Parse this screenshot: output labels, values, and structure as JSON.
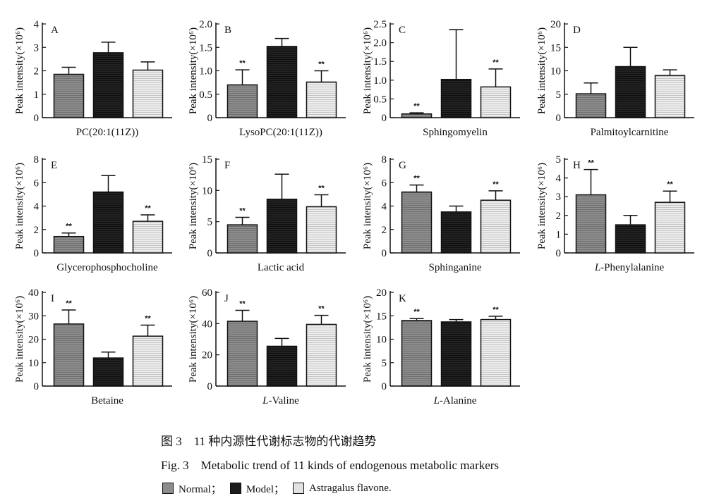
{
  "chart_data": [
    {
      "id": "A",
      "type": "bar",
      "panel_letter": "A",
      "xlabel": "PC(20:1(11Z))",
      "ylabel": "Peak intensity(×10⁶)",
      "ylim": [
        0,
        4
      ],
      "yticks": [
        0,
        1,
        2,
        3,
        4
      ],
      "series": [
        {
          "name": "Normal",
          "value": 1.85,
          "error": 0.3,
          "sig": ""
        },
        {
          "name": "Model",
          "value": 2.77,
          "error": 0.45,
          "sig": ""
        },
        {
          "name": "Astragalus flavone",
          "value": 2.03,
          "error": 0.35,
          "sig": ""
        }
      ]
    },
    {
      "id": "B",
      "type": "bar",
      "panel_letter": "B",
      "xlabel": "LysoPC(20:1(11Z))",
      "ylabel": "Peak intensity(×10⁶)",
      "ylim": [
        0,
        2.0
      ],
      "yticks": [
        0,
        0.5,
        1.0,
        1.5,
        2.0
      ],
      "series": [
        {
          "name": "Normal",
          "value": 0.7,
          "error": 0.32,
          "sig": "**"
        },
        {
          "name": "Model",
          "value": 1.52,
          "error": 0.17,
          "sig": ""
        },
        {
          "name": "Astragalus flavone",
          "value": 0.76,
          "error": 0.24,
          "sig": "**"
        }
      ]
    },
    {
      "id": "C",
      "type": "bar",
      "panel_letter": "C",
      "xlabel": "Sphingomyelin",
      "ylabel": "Peak intensity(×10⁶)",
      "ylim": [
        0,
        2.5
      ],
      "yticks": [
        0,
        0.5,
        1.0,
        1.5,
        2.0,
        2.5
      ],
      "series": [
        {
          "name": "Normal",
          "value": 0.1,
          "error": 0.03,
          "sig": "**"
        },
        {
          "name": "Model",
          "value": 1.02,
          "error": 1.33,
          "sig": ""
        },
        {
          "name": "Astragalus flavone",
          "value": 0.82,
          "error": 0.48,
          "sig": "**"
        }
      ]
    },
    {
      "id": "D",
      "type": "bar",
      "panel_letter": "D",
      "xlabel": "Palmitoylcarnitine",
      "ylabel": "Peak intensity(×10⁶)",
      "ylim": [
        0,
        20
      ],
      "yticks": [
        0,
        5,
        10,
        15,
        20
      ],
      "series": [
        {
          "name": "Normal",
          "value": 5.1,
          "error": 2.3,
          "sig": ""
        },
        {
          "name": "Model",
          "value": 10.9,
          "error": 4.1,
          "sig": ""
        },
        {
          "name": "Astragalus flavone",
          "value": 9.0,
          "error": 1.2,
          "sig": ""
        }
      ]
    },
    {
      "id": "E",
      "type": "bar",
      "panel_letter": "E",
      "xlabel": "Glycerophosphocholine",
      "ylabel": "Peak intensity(×10⁶)",
      "ylim": [
        0,
        8
      ],
      "yticks": [
        0,
        2,
        4,
        6,
        8
      ],
      "series": [
        {
          "name": "Normal",
          "value": 1.4,
          "error": 0.3,
          "sig": "**"
        },
        {
          "name": "Model",
          "value": 5.2,
          "error": 1.4,
          "sig": ""
        },
        {
          "name": "Astragalus flavone",
          "value": 2.7,
          "error": 0.55,
          "sig": "**"
        }
      ]
    },
    {
      "id": "F",
      "type": "bar",
      "panel_letter": "F",
      "xlabel": "Lactic acid",
      "ylabel": "Peak intensity(×10⁶)",
      "ylim": [
        0,
        15
      ],
      "yticks": [
        0,
        5,
        10,
        15
      ],
      "series": [
        {
          "name": "Normal",
          "value": 4.5,
          "error": 1.2,
          "sig": "**"
        },
        {
          "name": "Model",
          "value": 8.6,
          "error": 4.0,
          "sig": ""
        },
        {
          "name": "Astragalus flavone",
          "value": 7.4,
          "error": 1.9,
          "sig": "**"
        }
      ]
    },
    {
      "id": "G",
      "type": "bar",
      "panel_letter": "G",
      "xlabel": "Sphinganine",
      "ylabel": "Peak intensity(×10⁶)",
      "ylim": [
        0,
        8
      ],
      "yticks": [
        0,
        2,
        4,
        6,
        8
      ],
      "series": [
        {
          "name": "Normal",
          "value": 5.2,
          "error": 0.6,
          "sig": "**"
        },
        {
          "name": "Model",
          "value": 3.5,
          "error": 0.5,
          "sig": ""
        },
        {
          "name": "Astragalus flavone",
          "value": 4.5,
          "error": 0.8,
          "sig": "**"
        }
      ]
    },
    {
      "id": "H",
      "type": "bar",
      "panel_letter": "H",
      "xlabel": "L-Phenylalanine",
      "xlabel_italic_prefix": "L",
      "xlabel_rest": "-Phenylalanine",
      "ylabel": "Peak intensity(×10⁶)",
      "ylim": [
        0,
        5
      ],
      "yticks": [
        0,
        1,
        2,
        3,
        4,
        5
      ],
      "series": [
        {
          "name": "Normal",
          "value": 3.1,
          "error": 1.35,
          "sig": "**"
        },
        {
          "name": "Model",
          "value": 1.5,
          "error": 0.5,
          "sig": ""
        },
        {
          "name": "Astragalus flavone",
          "value": 2.7,
          "error": 0.6,
          "sig": "**"
        }
      ]
    },
    {
      "id": "I",
      "type": "bar",
      "panel_letter": "I",
      "xlabel": "Betaine",
      "ylabel": "Peak intensity(×10⁶)",
      "ylim": [
        0,
        40
      ],
      "yticks": [
        0,
        10,
        20,
        30,
        40
      ],
      "series": [
        {
          "name": "Normal",
          "value": 26.5,
          "error": 6.0,
          "sig": "**"
        },
        {
          "name": "Model",
          "value": 12.0,
          "error": 2.5,
          "sig": ""
        },
        {
          "name": "Astragalus flavone",
          "value": 21.3,
          "error": 4.7,
          "sig": "**"
        }
      ]
    },
    {
      "id": "J",
      "type": "bar",
      "panel_letter": "J",
      "xlabel": "L-Valine",
      "xlabel_italic_prefix": "L",
      "xlabel_rest": "-Valine",
      "ylabel": "Peak intensity(×10⁶)",
      "ylim": [
        0,
        60
      ],
      "yticks": [
        0,
        20,
        40,
        60
      ],
      "series": [
        {
          "name": "Normal",
          "value": 41.5,
          "error": 7.0,
          "sig": "**"
        },
        {
          "name": "Model",
          "value": 25.5,
          "error": 5.0,
          "sig": ""
        },
        {
          "name": "Astragalus flavone",
          "value": 39.5,
          "error": 5.8,
          "sig": "**"
        }
      ]
    },
    {
      "id": "K",
      "type": "bar",
      "panel_letter": "K",
      "xlabel": "L-Alanine",
      "xlabel_italic_prefix": "L",
      "xlabel_rest": "-Alanine",
      "ylabel": "Peak intensity(×10⁶)",
      "ylim": [
        0,
        20
      ],
      "yticks": [
        0,
        5,
        10,
        15,
        20
      ],
      "series": [
        {
          "name": "Normal",
          "value": 14.0,
          "error": 0.4,
          "sig": "**"
        },
        {
          "name": "Model",
          "value": 13.7,
          "error": 0.5,
          "sig": ""
        },
        {
          "name": "Astragalus flavone",
          "value": 14.2,
          "error": 0.7,
          "sig": "**"
        }
      ]
    }
  ],
  "caption": {
    "cn": "图 3　11 种内源性代谢标志物的代谢趋势",
    "en": "Fig. 3　Metabolic trend of 11 kinds of endogenous metabolic markers"
  },
  "legend": [
    {
      "label": "Normal；",
      "fill": "#8c8c8c",
      "pattern": "stripe-gray"
    },
    {
      "label": "Model；",
      "fill": "#1c1c1c",
      "pattern": "stripe-dark"
    },
    {
      "label": "Astragalus flavone.",
      "fill": "#e2e2e2",
      "pattern": "stripe-light"
    }
  ]
}
